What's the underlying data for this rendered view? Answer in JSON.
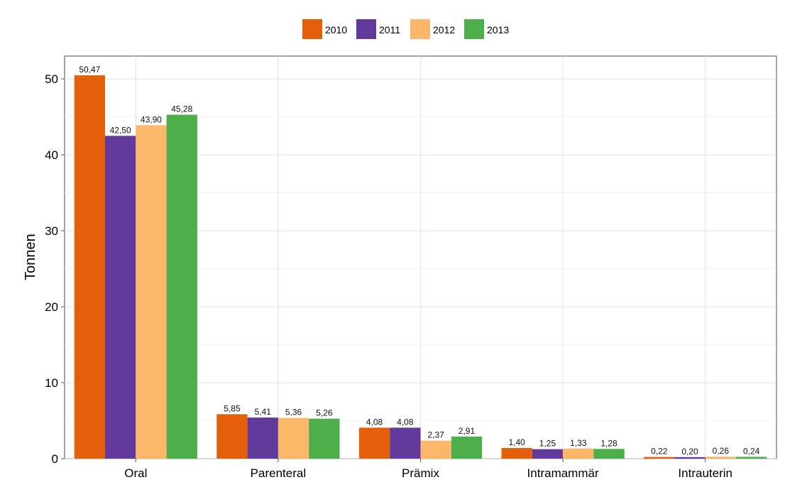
{
  "chart_data": {
    "type": "bar",
    "categories": [
      "Oral",
      "Parenteral",
      "Prämix",
      "Intramammär",
      "Intrauterin"
    ],
    "series": [
      {
        "name": "2010",
        "color": "#E35F0A",
        "values": [
          50.47,
          5.85,
          4.08,
          1.4,
          0.22
        ],
        "labels": [
          "50,47",
          "5,85",
          "4,08",
          "1,40",
          "0,22"
        ]
      },
      {
        "name": "2011",
        "color": "#613A9B",
        "values": [
          42.5,
          5.41,
          4.08,
          1.25,
          0.2
        ],
        "labels": [
          "42,50",
          "5,41",
          "4,08",
          "1,25",
          "0,20"
        ]
      },
      {
        "name": "2012",
        "color": "#FDB76B",
        "values": [
          43.9,
          5.36,
          2.37,
          1.33,
          0.26
        ],
        "labels": [
          "43,90",
          "5,36",
          "2,37",
          "1,33",
          "0,26"
        ]
      },
      {
        "name": "2013",
        "color": "#4DAF4A",
        "values": [
          45.28,
          5.26,
          2.91,
          1.28,
          0.24
        ],
        "labels": [
          "45,28",
          "5,26",
          "2,91",
          "1,28",
          "0,24"
        ]
      }
    ],
    "ylabel": "Tonnen",
    "xlabel": "",
    "ylim": [
      0,
      53
    ],
    "yticks": [
      0,
      10,
      20,
      30,
      40,
      50
    ],
    "grid": true,
    "legend_position": "top"
  }
}
